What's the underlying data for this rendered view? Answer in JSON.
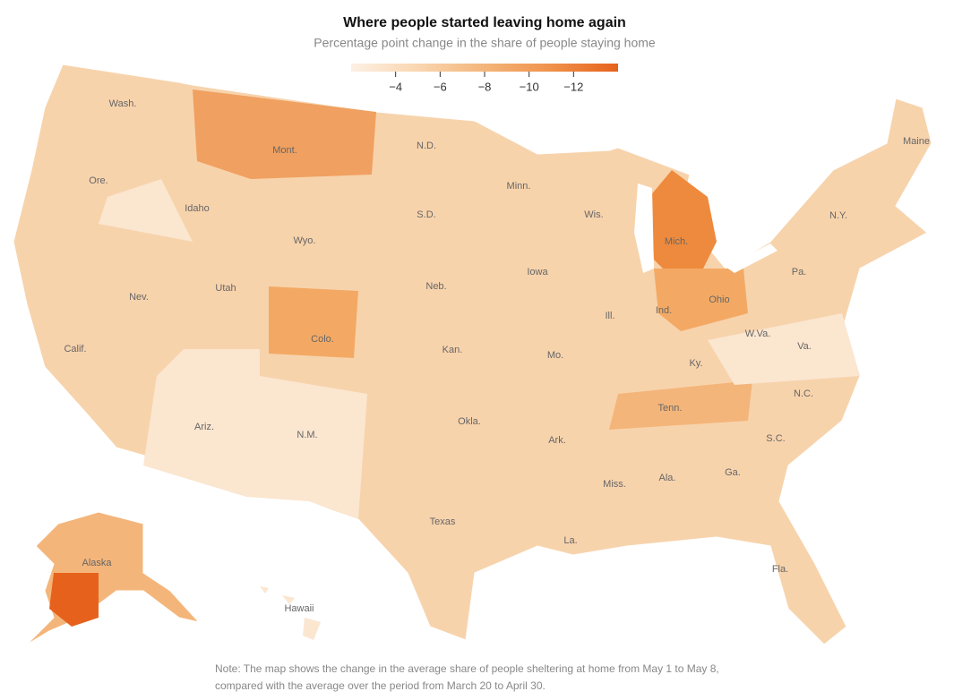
{
  "title": "Where people started leaving home again",
  "subtitle": "Percentage point change in the share of people staying home",
  "legend": {
    "colors": [
      "#fdf0e4",
      "#f9d6b0",
      "#f4b57a",
      "#ef914a",
      "#e6621c"
    ],
    "range": [
      -2,
      -14
    ],
    "ticks": [
      {
        "value": -4,
        "label": "−4"
      },
      {
        "value": -6,
        "label": "−6"
      },
      {
        "value": -8,
        "label": "−8"
      },
      {
        "value": -10,
        "label": "−10"
      },
      {
        "value": -12,
        "label": "−12"
      }
    ]
  },
  "state_labels": [
    "Wash.",
    "Ore.",
    "Calif.",
    "Nev.",
    "Idaho",
    "Mont.",
    "Wyo.",
    "Utah",
    "Ariz.",
    "Colo.",
    "N.M.",
    "N.D.",
    "S.D.",
    "Neb.",
    "Kan.",
    "Okla.",
    "Texas",
    "Minn.",
    "Iowa",
    "Mo.",
    "Ark.",
    "La.",
    "Wis.",
    "Ill.",
    "Miss.",
    "Ala.",
    "Tenn.",
    "Ky.",
    "Ind.",
    "Mich.",
    "Ohio",
    "W.Va.",
    "Va.",
    "N.C.",
    "S.C.",
    "Ga.",
    "Fla.",
    "Pa.",
    "N.Y.",
    "Maine",
    "Alaska",
    "Hawaii"
  ],
  "note": [
    "Note: The map shows the change in the average share of people sheltering at home from May 1 to May 8,",
    "compared with the average over the period from March 20 to April 30."
  ]
}
